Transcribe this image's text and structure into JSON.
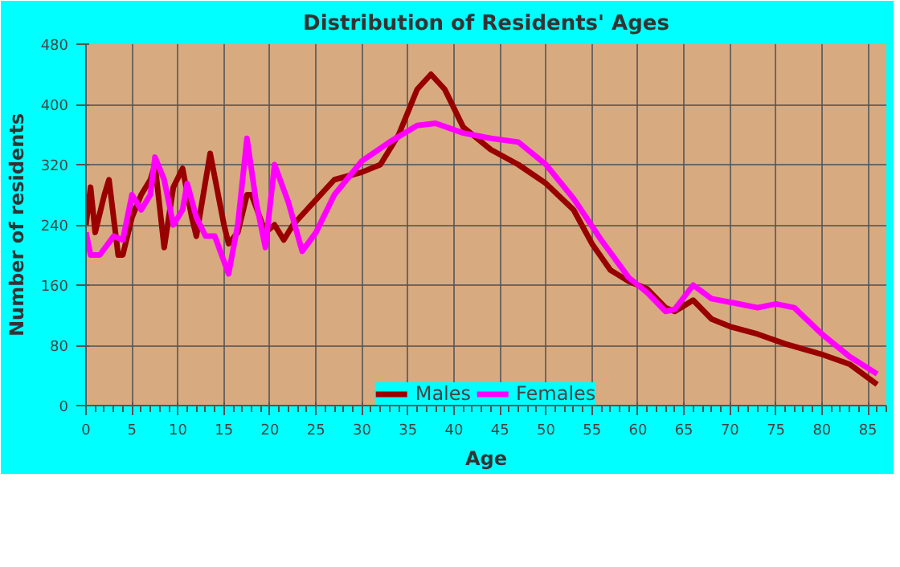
{
  "chart_data": {
    "type": "line",
    "title": "Distribution of Residents' Ages",
    "xlabel": "Age",
    "ylabel": "Number of residents",
    "xlim": [
      0,
      87
    ],
    "xticks": [
      0,
      5,
      10,
      15,
      20,
      25,
      30,
      35,
      40,
      45,
      50,
      55,
      60,
      65,
      70,
      75,
      80,
      85
    ],
    "ylim": [
      0,
      480
    ],
    "yticks": [
      0,
      80,
      160,
      240,
      320,
      400,
      480
    ],
    "grid": true,
    "legend": "bottom",
    "series": [
      {
        "name": "Males",
        "color": "#990000",
        "x": [
          0,
          0.5,
          1,
          2,
          2.5,
          3.5,
          4,
          5,
          6,
          7,
          7.5,
          8.5,
          9.5,
          10.5,
          11.5,
          12,
          13.5,
          15,
          15.5,
          16.5,
          17.5,
          18,
          19.5,
          20.5,
          21.5,
          22.5,
          24,
          27,
          30,
          32,
          34,
          36,
          37.5,
          39,
          41,
          44,
          47,
          50,
          53,
          55,
          57,
          59,
          61,
          63,
          64,
          66,
          68,
          70,
          73,
          76,
          80,
          83,
          86
        ],
        "values": [
          240,
          290,
          230,
          280,
          300,
          200,
          200,
          250,
          280,
          300,
          320,
          210,
          290,
          315,
          250,
          225,
          335,
          240,
          215,
          230,
          280,
          280,
          230,
          240,
          220,
          240,
          260,
          300,
          310,
          320,
          360,
          420,
          440,
          420,
          370,
          340,
          320,
          295,
          260,
          215,
          180,
          165,
          155,
          130,
          125,
          140,
          115,
          105,
          95,
          82,
          68,
          55,
          28
        ]
      },
      {
        "name": "Females",
        "color": "#ff00ff",
        "x": [
          0,
          0.5,
          1.5,
          3,
          4,
          5,
          6,
          7,
          7.5,
          8.5,
          9.5,
          10.5,
          11,
          12,
          13,
          14,
          15.5,
          16.5,
          17.5,
          18.5,
          19.5,
          20.5,
          22,
          23.5,
          25,
          27,
          30,
          33,
          36,
          38,
          41,
          44,
          47,
          50,
          53,
          56,
          59,
          61,
          63,
          64,
          66,
          68,
          71,
          73,
          75,
          77,
          80,
          83,
          86
        ],
        "values": [
          230,
          200,
          200,
          225,
          220,
          280,
          260,
          280,
          330,
          300,
          240,
          260,
          295,
          250,
          225,
          225,
          175,
          240,
          355,
          270,
          210,
          320,
          270,
          205,
          230,
          280,
          325,
          350,
          372,
          375,
          362,
          355,
          350,
          320,
          275,
          220,
          170,
          150,
          125,
          128,
          160,
          142,
          135,
          130,
          135,
          130,
          95,
          65,
          42
        ]
      }
    ]
  }
}
